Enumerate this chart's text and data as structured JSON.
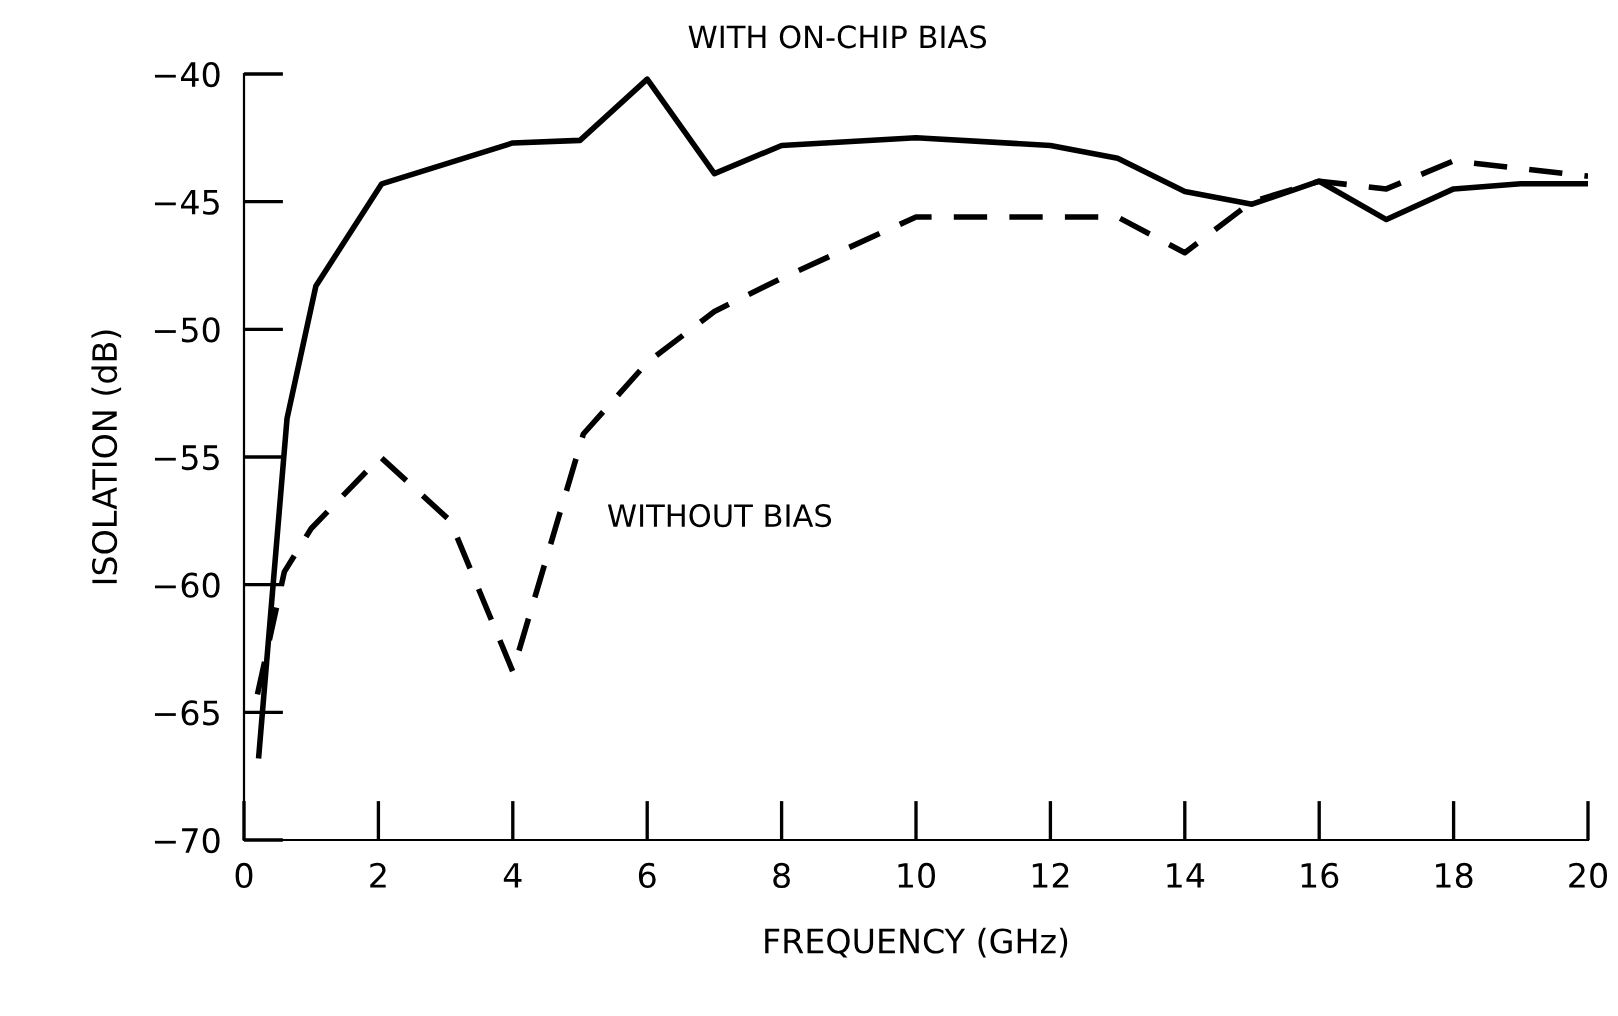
{
  "chart_data": {
    "type": "line",
    "xlabel": "FREQUENCY (GHz)",
    "ylabel": "ISOLATION (dB)",
    "xlim": [
      0,
      20
    ],
    "xticks": [
      0,
      2,
      4,
      6,
      8,
      10,
      12,
      14,
      16,
      18,
      20
    ],
    "ylim": [
      -70,
      -40
    ],
    "yticks": [
      -70,
      -65,
      -60,
      -55,
      -50,
      -45,
      -40
    ],
    "grid": false,
    "legend": false,
    "series": [
      {
        "name": "WITH ON-CHIP BIAS",
        "color": "#000000",
        "line_style": "solid",
        "x": [
          0.22,
          0.64,
          1.07,
          2.05,
          4,
          5,
          6,
          7,
          8,
          10,
          12,
          13,
          14,
          15,
          16,
          17,
          18,
          19,
          20
        ],
        "values": [
          -66.7,
          -53.5,
          -48.3,
          -44.3,
          -42.7,
          -42.6,
          -40.2,
          -43.9,
          -42.8,
          -42.5,
          -42.8,
          -43.3,
          -44.6,
          -45.1,
          -44.2,
          -45.7,
          -44.5,
          -44.3,
          -44.3
        ]
      },
      {
        "name": "WITHOUT BIAS",
        "color": "#000000",
        "line_style": "dashed",
        "x": [
          0.2,
          0.6,
          1.0,
          2.03,
          3.07,
          4.0,
          5.05,
          6,
          7,
          8,
          10,
          13,
          14,
          15,
          16,
          17,
          18,
          19,
          20
        ],
        "values": [
          -64.3,
          -59.5,
          -57.8,
          -55.0,
          -57.5,
          -63.4,
          -54.1,
          -51.3,
          -49.3,
          -48.0,
          -45.6,
          -45.6,
          -47.0,
          -45.0,
          -44.2,
          -44.5,
          -43.4,
          -43.7,
          -44.0
        ]
      }
    ]
  }
}
